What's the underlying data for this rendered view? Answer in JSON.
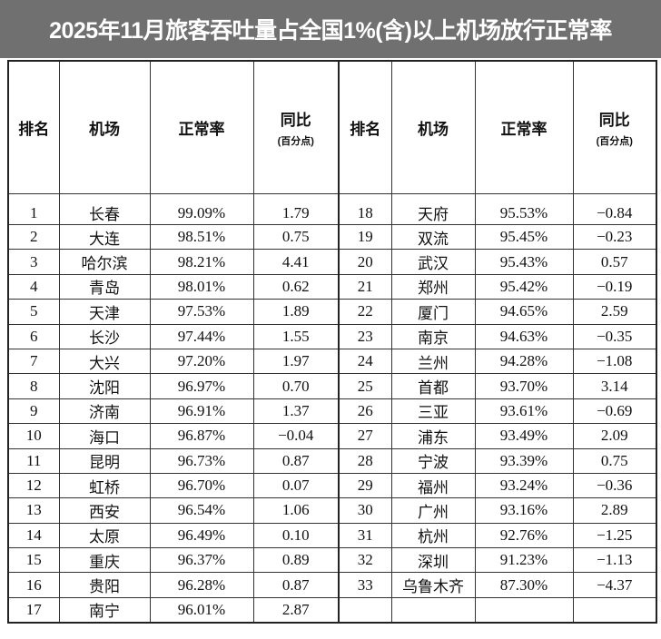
{
  "header": {
    "title": "2025年11月旅客吞吐量占全国1%(含)以上机场放行正常率"
  },
  "table": {
    "columns": [
      {
        "label": "排名"
      },
      {
        "label": "机场"
      },
      {
        "label": "正常率"
      },
      {
        "label": "同比",
        "sub": "(百分点)"
      }
    ],
    "left_rows": [
      [
        1,
        "长春",
        "99.09%",
        "1.79"
      ],
      [
        2,
        "大连",
        "98.51%",
        "0.75"
      ],
      [
        3,
        "哈尔滨",
        "98.21%",
        "4.41"
      ],
      [
        4,
        "青岛",
        "98.01%",
        "0.62"
      ],
      [
        5,
        "天津",
        "97.53%",
        "1.89"
      ],
      [
        6,
        "长沙",
        "97.44%",
        "1.55"
      ],
      [
        7,
        "大兴",
        "97.20%",
        "1.97"
      ],
      [
        8,
        "沈阳",
        "96.97%",
        "0.70"
      ],
      [
        9,
        "济南",
        "96.91%",
        "1.37"
      ],
      [
        10,
        "海口",
        "96.87%",
        "−0.04"
      ],
      [
        11,
        "昆明",
        "96.73%",
        "0.87"
      ],
      [
        12,
        "虹桥",
        "96.70%",
        "0.07"
      ],
      [
        13,
        "西安",
        "96.54%",
        "1.06"
      ],
      [
        14,
        "太原",
        "96.49%",
        "0.10"
      ],
      [
        15,
        "重庆",
        "96.37%",
        "0.89"
      ],
      [
        16,
        "贵阳",
        "96.28%",
        "0.87"
      ],
      [
        17,
        "南宁",
        "96.01%",
        "2.87"
      ]
    ],
    "right_rows": [
      [
        18,
        "天府",
        "95.53%",
        "−0.84"
      ],
      [
        19,
        "双流",
        "95.45%",
        "−0.23"
      ],
      [
        20,
        "武汉",
        "95.43%",
        "0.57"
      ],
      [
        21,
        "郑州",
        "95.42%",
        "−0.19"
      ],
      [
        22,
        "厦门",
        "94.65%",
        "2.59"
      ],
      [
        23,
        "南京",
        "94.63%",
        "−0.35"
      ],
      [
        24,
        "兰州",
        "94.28%",
        "−1.08"
      ],
      [
        25,
        "首都",
        "93.70%",
        "3.14"
      ],
      [
        26,
        "三亚",
        "93.61%",
        "−0.69"
      ],
      [
        27,
        "浦东",
        "93.49%",
        "2.09"
      ],
      [
        28,
        "宁波",
        "93.39%",
        "0.75"
      ],
      [
        29,
        "福州",
        "93.24%",
        "−0.36"
      ],
      [
        30,
        "广州",
        "93.16%",
        "2.89"
      ],
      [
        31,
        "杭州",
        "92.76%",
        "−1.25"
      ],
      [
        32,
        "深圳",
        "91.23%",
        "−1.13"
      ],
      [
        33,
        "乌鲁木齐",
        "87.30%",
        "−4.37"
      ]
    ]
  }
}
